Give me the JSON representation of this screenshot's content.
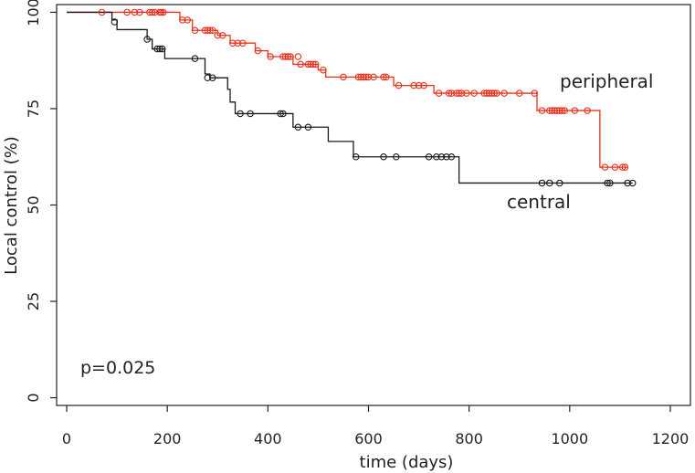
{
  "chart_data": {
    "type": "line",
    "step": true,
    "xlabel": "time (days)",
    "ylabel": "Local control (%)",
    "xlim": [
      -20,
      1240
    ],
    "ylim": [
      -2,
      102
    ],
    "xticks": [
      0,
      200,
      400,
      600,
      800,
      1000,
      1200
    ],
    "yticks": [
      0,
      25,
      50,
      75,
      100
    ],
    "grid": false,
    "annotation": "p=0.025",
    "series": [
      {
        "name": "peripheral",
        "color": "#e8301c",
        "steps": [
          [
            0,
            100
          ],
          [
            225,
            98
          ],
          [
            250,
            95.3
          ],
          [
            300,
            94
          ],
          [
            325,
            92
          ],
          [
            375,
            90
          ],
          [
            400,
            88.5
          ],
          [
            450,
            86.5
          ],
          [
            500,
            85
          ],
          [
            515,
            83.2
          ],
          [
            650,
            81
          ],
          [
            730,
            79
          ],
          [
            935,
            74.5
          ],
          [
            1060,
            59.8
          ],
          [
            1115,
            59.8
          ]
        ],
        "censored": [
          [
            70,
            100
          ],
          [
            120,
            100
          ],
          [
            135,
            100
          ],
          [
            145,
            100
          ],
          [
            165,
            100
          ],
          [
            170,
            100
          ],
          [
            175,
            100
          ],
          [
            185,
            100
          ],
          [
            188,
            100
          ],
          [
            192,
            100
          ],
          [
            230,
            98
          ],
          [
            240,
            98
          ],
          [
            255,
            95.3
          ],
          [
            275,
            95.3
          ],
          [
            280,
            95.3
          ],
          [
            285,
            95.3
          ],
          [
            290,
            95.3
          ],
          [
            300,
            94
          ],
          [
            310,
            94
          ],
          [
            330,
            92
          ],
          [
            340,
            92
          ],
          [
            350,
            92
          ],
          [
            380,
            90
          ],
          [
            405,
            88.5
          ],
          [
            430,
            88.5
          ],
          [
            435,
            88.5
          ],
          [
            440,
            88.5
          ],
          [
            445,
            88.5
          ],
          [
            460,
            88.5
          ],
          [
            465,
            86.5
          ],
          [
            480,
            86.5
          ],
          [
            485,
            86.5
          ],
          [
            490,
            86.5
          ],
          [
            495,
            86.5
          ],
          [
            510,
            85
          ],
          [
            550,
            83.2
          ],
          [
            580,
            83.2
          ],
          [
            585,
            83.2
          ],
          [
            590,
            83.2
          ],
          [
            595,
            83.2
          ],
          [
            600,
            83.2
          ],
          [
            610,
            83.2
          ],
          [
            630,
            83.2
          ],
          [
            635,
            83.2
          ],
          [
            660,
            81
          ],
          [
            690,
            81
          ],
          [
            700,
            81
          ],
          [
            710,
            81
          ],
          [
            740,
            79
          ],
          [
            760,
            79
          ],
          [
            765,
            79
          ],
          [
            775,
            79
          ],
          [
            780,
            79
          ],
          [
            785,
            79
          ],
          [
            795,
            79
          ],
          [
            810,
            79
          ],
          [
            830,
            79
          ],
          [
            835,
            79
          ],
          [
            840,
            79
          ],
          [
            845,
            79
          ],
          [
            850,
            79
          ],
          [
            855,
            79
          ],
          [
            870,
            79
          ],
          [
            900,
            79
          ],
          [
            930,
            79
          ],
          [
            945,
            74.5
          ],
          [
            960,
            74.5
          ],
          [
            965,
            74.5
          ],
          [
            970,
            74.5
          ],
          [
            975,
            74.5
          ],
          [
            980,
            74.5
          ],
          [
            985,
            74.5
          ],
          [
            990,
            74.5
          ],
          [
            1010,
            74.5
          ],
          [
            1035,
            74.5
          ],
          [
            1070,
            59.8
          ],
          [
            1090,
            59.8
          ],
          [
            1105,
            59.8
          ],
          [
            1110,
            59.8
          ]
        ]
      },
      {
        "name": "central",
        "color": "#1a1a1a",
        "steps": [
          [
            0,
            100
          ],
          [
            90,
            98
          ],
          [
            100,
            95.5
          ],
          [
            160,
            93
          ],
          [
            170,
            90.5
          ],
          [
            195,
            88
          ],
          [
            275,
            84
          ],
          [
            285,
            83
          ],
          [
            320,
            80
          ],
          [
            325,
            76.7
          ],
          [
            335,
            73.7
          ],
          [
            435,
            73.7
          ],
          [
            450,
            70.2
          ],
          [
            520,
            66.5
          ],
          [
            570,
            62.5
          ],
          [
            780,
            55.7
          ],
          [
            1125,
            55.7
          ]
        ],
        "censored": [
          [
            95,
            97.5
          ],
          [
            160,
            93
          ],
          [
            180,
            90.5
          ],
          [
            185,
            90.5
          ],
          [
            190,
            90.5
          ],
          [
            255,
            88
          ],
          [
            280,
            83
          ],
          [
            290,
            83
          ],
          [
            345,
            73.7
          ],
          [
            365,
            73.7
          ],
          [
            425,
            73.7
          ],
          [
            430,
            73.7
          ],
          [
            460,
            70.2
          ],
          [
            480,
            70.2
          ],
          [
            575,
            62.5
          ],
          [
            630,
            62.5
          ],
          [
            655,
            62.5
          ],
          [
            720,
            62.5
          ],
          [
            735,
            62.5
          ],
          [
            745,
            62.5
          ],
          [
            755,
            62.5
          ],
          [
            765,
            62.5
          ],
          [
            945,
            55.7
          ],
          [
            960,
            55.7
          ],
          [
            980,
            55.7
          ],
          [
            1075,
            55.7
          ],
          [
            1080,
            55.7
          ],
          [
            1115,
            55.7
          ],
          [
            1125,
            55.7
          ]
        ]
      }
    ]
  }
}
